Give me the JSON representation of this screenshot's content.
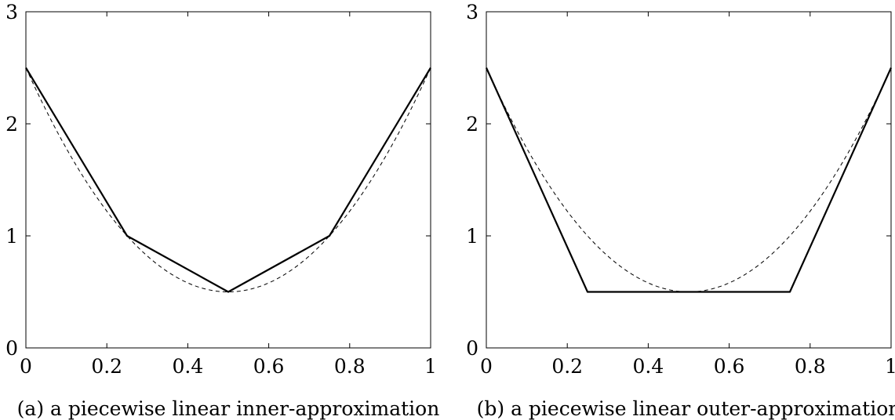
{
  "chart_data": [
    {
      "type": "line",
      "caption": "(a) a piecewise linear inner-approximation",
      "xlim": [
        0,
        1
      ],
      "ylim": [
        0,
        3
      ],
      "xticks": [
        0,
        0.2,
        0.4,
        0.6,
        0.8,
        1
      ],
      "xtick_labels": [
        "0",
        "0.2",
        "0.4",
        "0.6",
        "0.8",
        "1"
      ],
      "yticks": [
        0,
        1,
        2,
        3
      ],
      "ytick_labels": [
        "0",
        "1",
        "2",
        "3"
      ],
      "grid": false,
      "series": [
        {
          "style": "solid",
          "x": [
            0,
            0.25,
            0.5,
            0.75,
            1
          ],
          "y": [
            2.5,
            1.0,
            0.5,
            1.0,
            2.5
          ]
        },
        {
          "style": "dashed",
          "function": "8*(x-0.5)^2+0.5",
          "x": [
            0,
            0.25,
            0.5,
            0.75,
            1
          ],
          "y": [
            2.5,
            1.0,
            0.5,
            1.0,
            2.5
          ]
        }
      ]
    },
    {
      "type": "line",
      "caption": "(b) a piecewise linear outer-approximation",
      "xlim": [
        0,
        1
      ],
      "ylim": [
        0,
        3
      ],
      "xticks": [
        0,
        0.2,
        0.4,
        0.6,
        0.8,
        1
      ],
      "xtick_labels": [
        "0",
        "0.2",
        "0.4",
        "0.6",
        "0.8",
        "1"
      ],
      "yticks": [
        0,
        1,
        2,
        3
      ],
      "ytick_labels": [
        "0",
        "1",
        "2",
        "3"
      ],
      "grid": false,
      "series": [
        {
          "style": "solid",
          "x": [
            0,
            0.25,
            0.75,
            1
          ],
          "y": [
            2.5,
            0.5,
            0.5,
            2.5
          ]
        },
        {
          "style": "dashed",
          "function": "8*(x-0.5)^2+0.5",
          "x": [
            0,
            0.25,
            0.5,
            0.75,
            1
          ],
          "y": [
            2.5,
            1.0,
            0.5,
            1.0,
            2.5
          ]
        }
      ]
    }
  ]
}
